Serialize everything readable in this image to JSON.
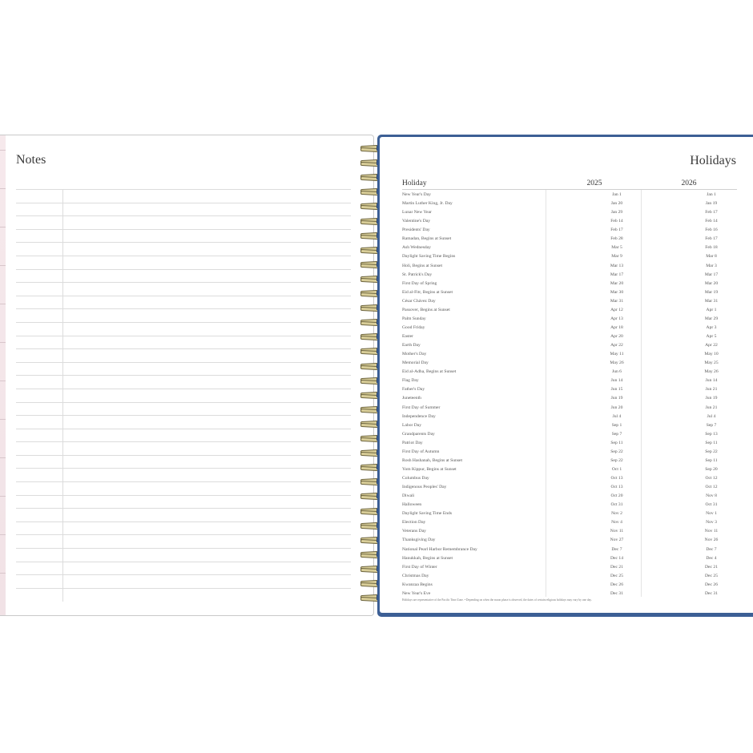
{
  "notes": {
    "title": "Notes"
  },
  "holidays": {
    "title": "Holidays",
    "headers": {
      "holiday": "Holiday",
      "year1": "2025",
      "year2": "2026"
    },
    "rows": [
      [
        "New Year's Day",
        "Jan 1",
        "Jan 1"
      ],
      [
        "Martin Luther King, Jr. Day",
        "Jan 20",
        "Jan 19"
      ],
      [
        "Lunar New Year",
        "Jan 29",
        "Feb 17"
      ],
      [
        "Valentine's Day",
        "Feb 14",
        "Feb 14"
      ],
      [
        "Presidents' Day",
        "Feb 17",
        "Feb 16"
      ],
      [
        "Ramadan, Begins at Sunset",
        "Feb 28",
        "Feb 17"
      ],
      [
        "Ash Wednesday",
        "Mar 5",
        "Feb 18"
      ],
      [
        "Daylight Saving Time Begins",
        "Mar 9",
        "Mar 8"
      ],
      [
        "Holi, Begins at Sunset",
        "Mar 13",
        "Mar 3"
      ],
      [
        "St. Patrick's Day",
        "Mar 17",
        "Mar 17"
      ],
      [
        "First Day of Spring",
        "Mar 20",
        "Mar 20"
      ],
      [
        "Eid al-Fitr, Begins at Sunset",
        "Mar 30",
        "Mar 19"
      ],
      [
        "César Chávez Day",
        "Mar 31",
        "Mar 31"
      ],
      [
        "Passover, Begins at Sunset",
        "Apr 12",
        "Apr 1"
      ],
      [
        "Palm Sunday",
        "Apr 13",
        "Mar 29"
      ],
      [
        "Good Friday",
        "Apr 18",
        "Apr 3"
      ],
      [
        "Easter",
        "Apr 20",
        "Apr 5"
      ],
      [
        "Earth Day",
        "Apr 22",
        "Apr 22"
      ],
      [
        "Mother's Day",
        "May 11",
        "May 10"
      ],
      [
        "Memorial Day",
        "May 26",
        "May 25"
      ],
      [
        "Eid al-Adha, Begins at Sunset",
        "Jun 6",
        "May 26"
      ],
      [
        "Flag Day",
        "Jun 14",
        "Jun 14"
      ],
      [
        "Father's Day",
        "Jun 15",
        "Jun 21"
      ],
      [
        "Juneteenth",
        "Jun 19",
        "Jun 19"
      ],
      [
        "First Day of Summer",
        "Jun 20",
        "Jun 21"
      ],
      [
        "Independence Day",
        "Jul 4",
        "Jul 4"
      ],
      [
        "Labor Day",
        "Sep 1",
        "Sep 7"
      ],
      [
        "Grandparents Day",
        "Sep 7",
        "Sep 13"
      ],
      [
        "Patriot Day",
        "Sep 11",
        "Sep 11"
      ],
      [
        "First Day of Autumn",
        "Sep 22",
        "Sep 22"
      ],
      [
        "Rosh Hashanah, Begins at Sunset",
        "Sep 22",
        "Sep 11"
      ],
      [
        "Yom Kippur, Begins at Sunset",
        "Oct 1",
        "Sep 20"
      ],
      [
        "Columbus Day",
        "Oct 13",
        "Oct 12"
      ],
      [
        "Indigenous Peoples' Day",
        "Oct 13",
        "Oct 12"
      ],
      [
        "Diwali",
        "Oct 20",
        "Nov 8"
      ],
      [
        "Halloween",
        "Oct 31",
        "Oct 31"
      ],
      [
        "Daylight Saving Time Ends",
        "Nov 2",
        "Nov 1"
      ],
      [
        "Election Day",
        "Nov 4",
        "Nov 3"
      ],
      [
        "Veterans Day",
        "Nov 11",
        "Nov 11"
      ],
      [
        "Thanksgiving Day",
        "Nov 27",
        "Nov 26"
      ],
      [
        "National Pearl Harbor Remembrance Day",
        "Dec 7",
        "Dec 7"
      ],
      [
        "Hanukkah, Begins at Sunset",
        "Dec 14",
        "Dec 4"
      ],
      [
        "First Day of Winter",
        "Dec 21",
        "Dec 21"
      ],
      [
        "Christmas Day",
        "Dec 25",
        "Dec 25"
      ],
      [
        "Kwanzaa Begins",
        "Dec 26",
        "Dec 26"
      ],
      [
        "New Year's Eve",
        "Dec 31",
        "Dec 31"
      ]
    ],
    "footnote": "Holidays are representative of the Pacific Time Zone.  •  Depending on when the moon phase is observed, the dates of certain religious holidays may vary by one day."
  },
  "colors": {
    "cover": "#3c5f95",
    "tabs": "#f3e5e9",
    "coil": "#d8cd98"
  }
}
